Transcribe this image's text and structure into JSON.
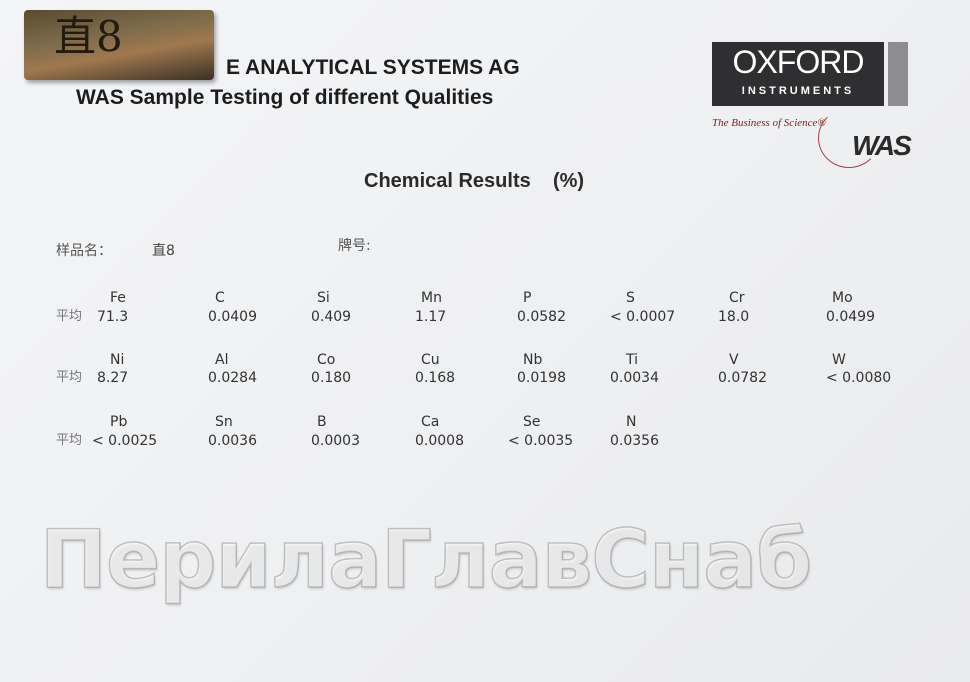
{
  "header": {
    "line1": "E ANALYTICAL SYSTEMS AG",
    "line2": "WAS Sample Testing of different Qualities"
  },
  "sample_tag": {
    "text": "直8"
  },
  "logo": {
    "name": "OXFORD",
    "subtitle": "INSTRUMENTS",
    "tagline": "The Business of Science®",
    "mark": "WAS",
    "box_color": "#2f2f31"
  },
  "title": "Chemical Results    (%)",
  "meta": {
    "sample_name_label": "样品名：",
    "sample_name_value": "直8",
    "grade_label": "牌号:"
  },
  "avg_label": "平均",
  "rows": [
    [
      {
        "el": "Fe",
        "val": "71.3"
      },
      {
        "el": "C",
        "val": "0.0409"
      },
      {
        "el": "Si",
        "val": "0.409"
      },
      {
        "el": "Mn",
        "val": "1.17"
      },
      {
        "el": "P",
        "val": "0.0582"
      },
      {
        "el": "S",
        "val": "< 0.0007"
      },
      {
        "el": "Cr",
        "val": "18.0"
      },
      {
        "el": "Mo",
        "val": "0.0499"
      }
    ],
    [
      {
        "el": "Ni",
        "val": "8.27"
      },
      {
        "el": "Al",
        "val": "0.0284"
      },
      {
        "el": "Co",
        "val": "0.180"
      },
      {
        "el": "Cu",
        "val": "0.168"
      },
      {
        "el": "Nb",
        "val": "0.0198"
      },
      {
        "el": "Ti",
        "val": "0.0034"
      },
      {
        "el": "V",
        "val": "0.0782"
      },
      {
        "el": "W",
        "val": "< 0.0080"
      }
    ],
    [
      {
        "el": "Pb",
        "val": "< 0.0025"
      },
      {
        "el": "Sn",
        "val": "0.0036"
      },
      {
        "el": "B",
        "val": "0.0003"
      },
      {
        "el": "Ca",
        "val": "0.0008"
      },
      {
        "el": "Se",
        "val": "< 0.0035"
      },
      {
        "el": "N",
        "val": "0.0356"
      }
    ]
  ],
  "watermark": "ПерилаГлавСнаб"
}
